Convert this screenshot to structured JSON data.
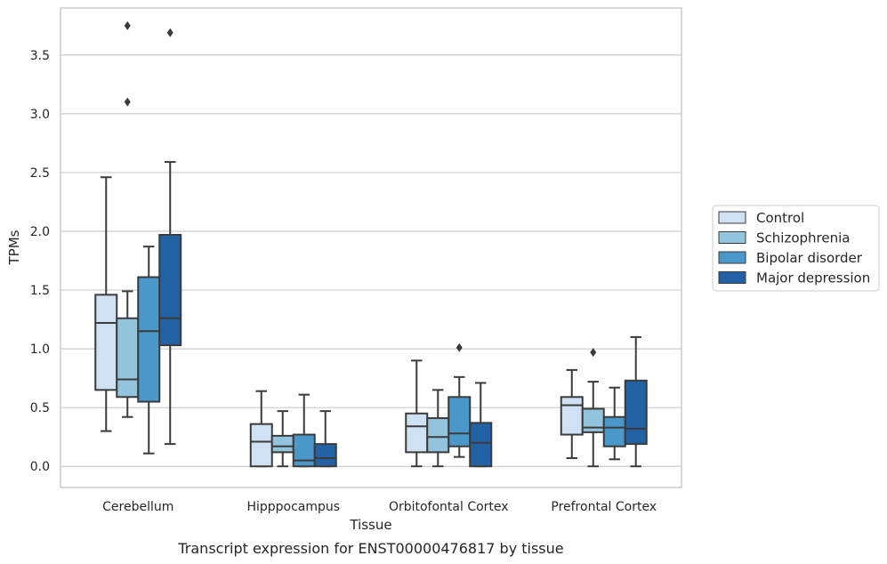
{
  "chart_data": {
    "type": "box",
    "caption": "Transcript expression for ENST00000476817 by tissue",
    "xlabel": "Tissue",
    "ylabel": "TPMs",
    "ylim": [
      -0.18,
      3.9
    ],
    "yticks": [
      "0.0",
      "0.5",
      "1.0",
      "1.5",
      "2.0",
      "2.5",
      "3.0",
      "3.5"
    ],
    "ytick_values": [
      0,
      0.5,
      1.0,
      1.5,
      2.0,
      2.5,
      3.0,
      3.5
    ],
    "grid": "horizontal",
    "legend_position": "right",
    "categories": [
      "Cerebellum",
      "Hipppocampus",
      "Orbitofontal Cortex",
      "Prefrontal Cortex"
    ],
    "series": [
      {
        "name": "Control",
        "color": "#cfe1f2",
        "boxes": [
          {
            "whislo": 0.3,
            "q1": 0.65,
            "med": 1.22,
            "q3": 1.46,
            "whishi": 2.46,
            "fliers": []
          },
          {
            "whislo": 0.0,
            "q1": 0.0,
            "med": 0.21,
            "q3": 0.36,
            "whishi": 0.64,
            "fliers": []
          },
          {
            "whislo": 0.0,
            "q1": 0.12,
            "med": 0.34,
            "q3": 0.45,
            "whishi": 0.9,
            "fliers": []
          },
          {
            "whislo": 0.07,
            "q1": 0.27,
            "med": 0.52,
            "q3": 0.59,
            "whishi": 0.82,
            "fliers": []
          }
        ]
      },
      {
        "name": "Schizophrenia",
        "color": "#93c4de",
        "boxes": [
          {
            "whislo": 0.42,
            "q1": 0.59,
            "med": 0.74,
            "q3": 1.26,
            "whishi": 1.49,
            "fliers": [
              3.1,
              3.75
            ]
          },
          {
            "whislo": 0.0,
            "q1": 0.12,
            "med": 0.17,
            "q3": 0.26,
            "whishi": 0.47,
            "fliers": []
          },
          {
            "whislo": 0.0,
            "q1": 0.12,
            "med": 0.25,
            "q3": 0.41,
            "whishi": 0.65,
            "fliers": []
          },
          {
            "whislo": 0.0,
            "q1": 0.29,
            "med": 0.33,
            "q3": 0.49,
            "whishi": 0.72,
            "fliers": [
              0.97
            ]
          }
        ]
      },
      {
        "name": "Bipolar disorder",
        "color": "#4a98c9",
        "boxes": [
          {
            "whislo": 0.11,
            "q1": 0.55,
            "med": 1.15,
            "q3": 1.61,
            "whishi": 1.87,
            "fliers": []
          },
          {
            "whislo": 0.0,
            "q1": 0.0,
            "med": 0.05,
            "q3": 0.27,
            "whishi": 0.61,
            "fliers": []
          },
          {
            "whislo": 0.08,
            "q1": 0.17,
            "med": 0.28,
            "q3": 0.59,
            "whishi": 0.76,
            "fliers": [
              1.01
            ]
          },
          {
            "whislo": 0.06,
            "q1": 0.17,
            "med": 0.33,
            "q3": 0.42,
            "whishi": 0.67,
            "fliers": []
          }
        ]
      },
      {
        "name": "Major depression",
        "color": "#2262a4",
        "boxes": [
          {
            "whislo": 0.19,
            "q1": 1.03,
            "med": 1.26,
            "q3": 1.97,
            "whishi": 2.59,
            "fliers": [
              3.69
            ]
          },
          {
            "whislo": 0.0,
            "q1": 0.0,
            "med": 0.07,
            "q3": 0.19,
            "whishi": 0.47,
            "fliers": []
          },
          {
            "whislo": 0.0,
            "q1": 0.0,
            "med": 0.2,
            "q3": 0.37,
            "whishi": 0.71,
            "fliers": []
          },
          {
            "whislo": 0.0,
            "q1": 0.19,
            "med": 0.32,
            "q3": 0.73,
            "whishi": 1.1,
            "fliers": []
          }
        ]
      }
    ]
  }
}
